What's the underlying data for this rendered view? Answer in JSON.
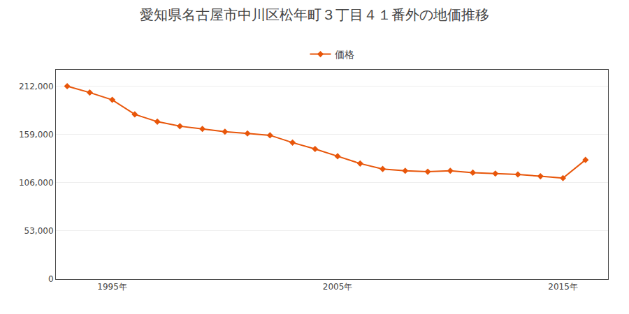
{
  "chart_data": {
    "type": "line",
    "title": "愛知県名古屋市中川区松年町３丁目４１番外の地価推移",
    "x": [
      1993,
      1994,
      1995,
      1996,
      1997,
      1998,
      1999,
      2000,
      2001,
      2002,
      2003,
      2004,
      2005,
      2006,
      2007,
      2008,
      2009,
      2010,
      2011,
      2012,
      2013,
      2014,
      2015,
      2016
    ],
    "series": [
      {
        "name": "価格",
        "color": "#e8560a",
        "values": [
          212000,
          205000,
          197000,
          181000,
          173000,
          168000,
          165000,
          162000,
          160000,
          158000,
          150000,
          143000,
          135000,
          127000,
          121000,
          119000,
          118000,
          119000,
          117000,
          116000,
          115000,
          113000,
          111000,
          131000
        ]
      }
    ],
    "marker": "diamond",
    "line_style": "solid",
    "xlim": [
      1992.5,
      2017
    ],
    "xticks": [
      {
        "value": 1995,
        "label": "1995年"
      },
      {
        "value": 2005,
        "label": "2005年"
      },
      {
        "value": 2015,
        "label": "2015年"
      }
    ],
    "ylim": [
      0,
      230000
    ],
    "yticks": [
      0,
      {
        "value": 53000,
        "label": "53,000"
      },
      {
        "value": 106000,
        "label": "106,000"
      },
      {
        "value": 159000,
        "label": "159,000"
      },
      {
        "value": 212000,
        "label": "212,000"
      }
    ],
    "grid": "y",
    "legend": "top"
  }
}
